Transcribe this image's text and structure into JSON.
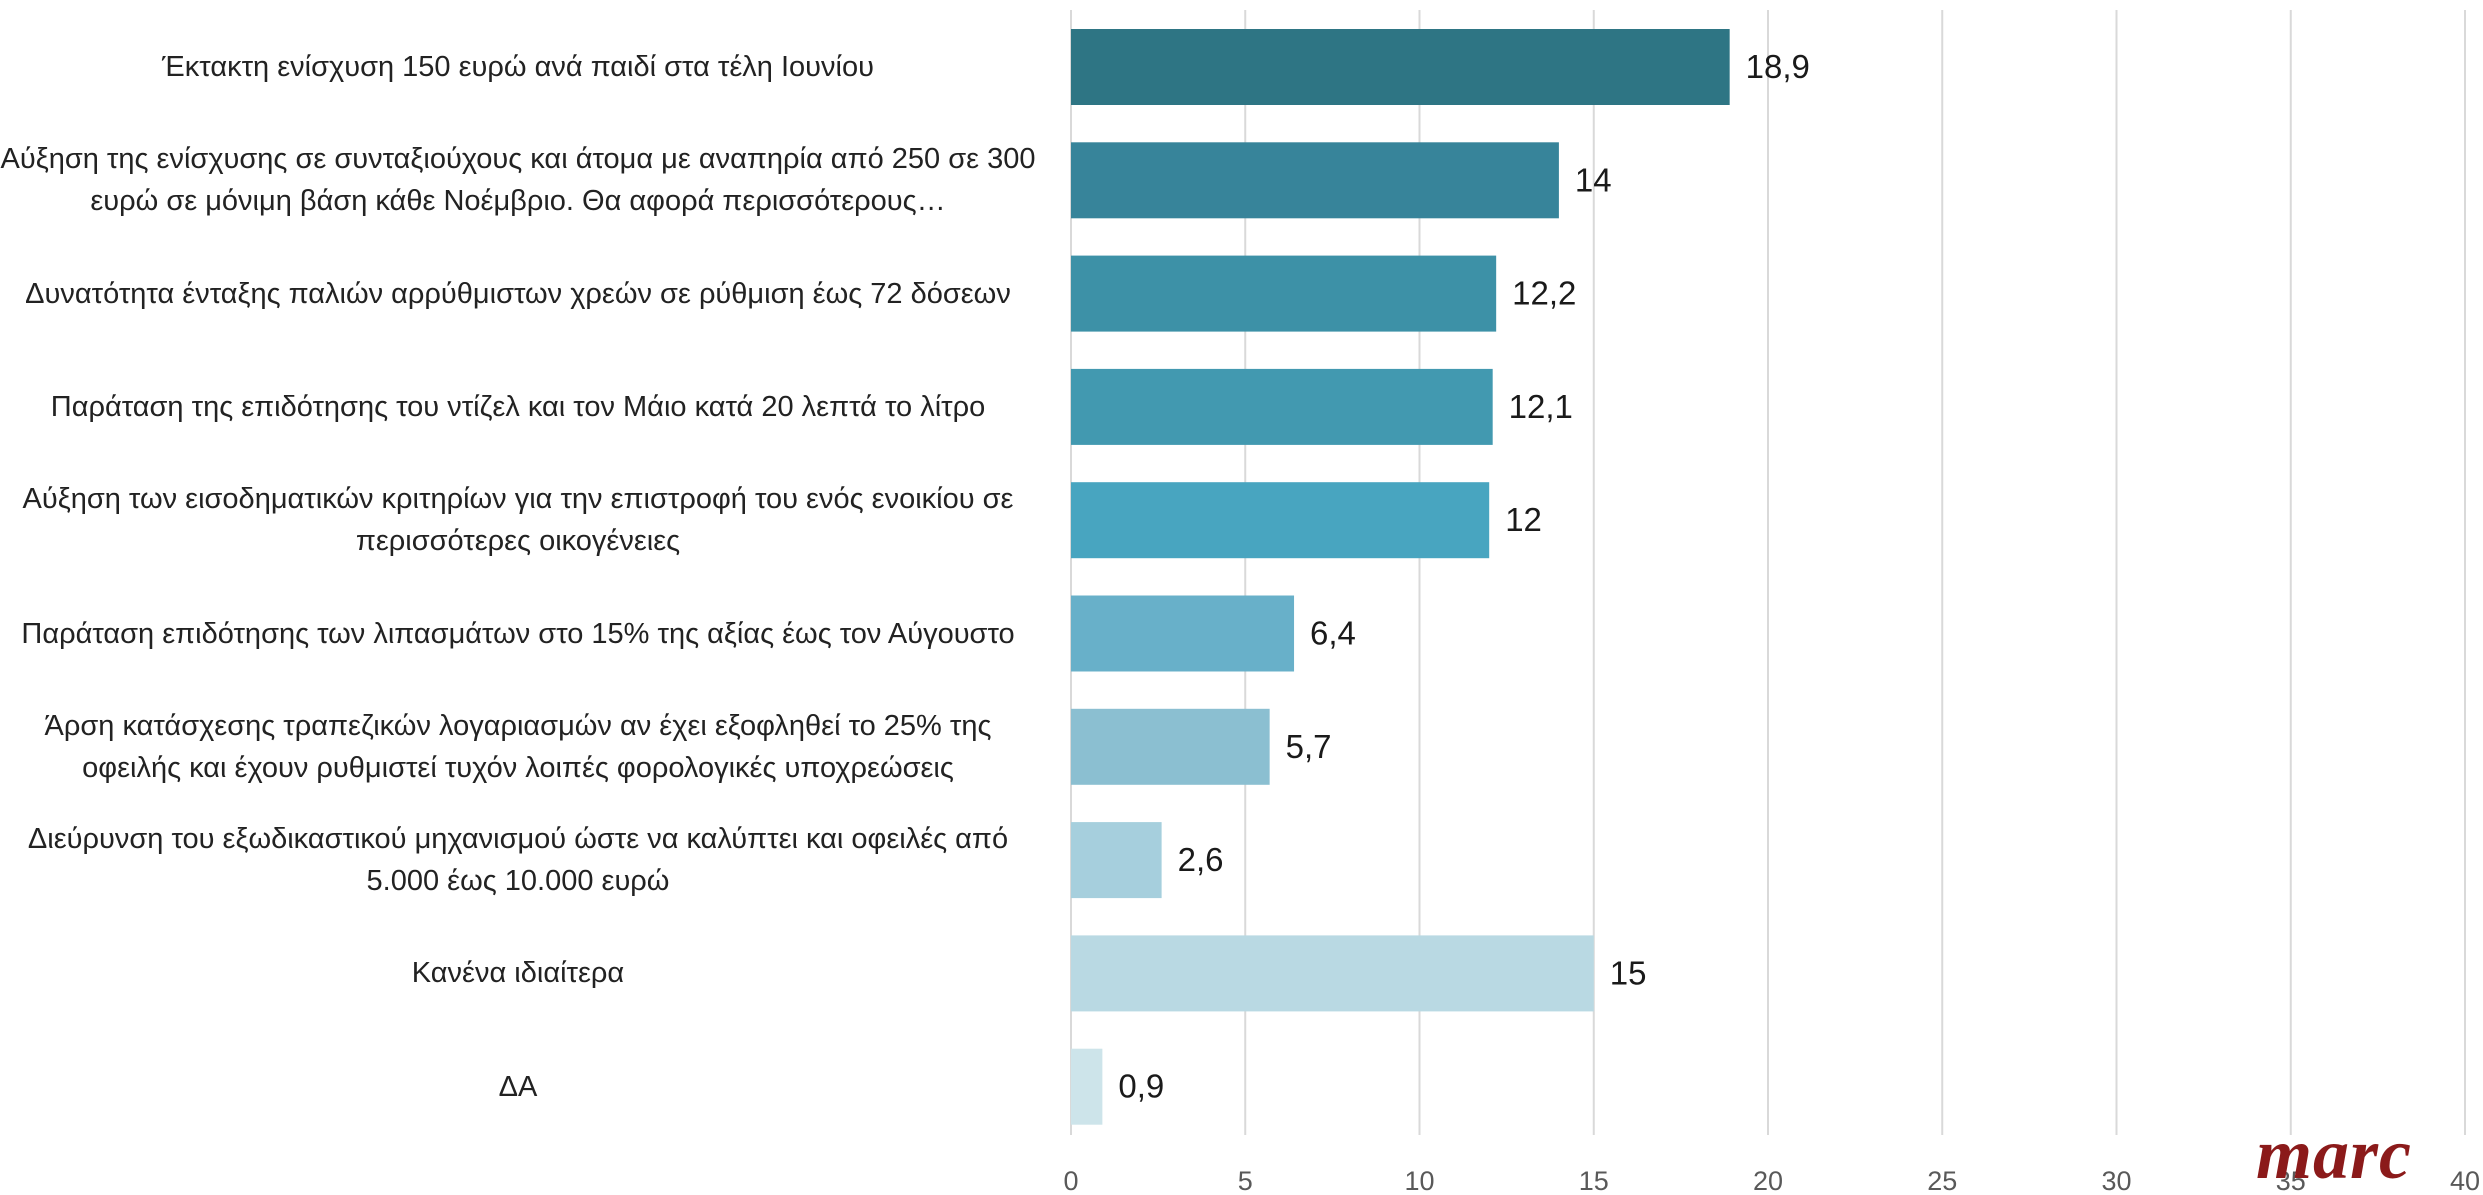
{
  "chart_data": {
    "type": "bar",
    "orientation": "horizontal",
    "categories": [
      "Έκτακτη ενίσχυση 150 ευρώ ανά παιδί στα τέλη Ιουνίου",
      "Αύξηση της ενίσχυσης σε συνταξιούχους και άτομα με αναπηρία από 250 σε 300 ευρώ σε μόνιμη βάση κάθε Νοέμβριο. Θα αφορά περισσότερους…",
      "Δυνατότητα ένταξης παλιών αρρύθμιστων χρεών  σε ρύθμιση έως 72 δόσεων",
      "Παράταση της επιδότησης του ντίζελ και τον Μάιο κατά 20 λεπτά το λίτρο",
      "Αύξηση των εισοδηματικών κριτηρίων για την επιστροφή του ενός ενοικίου σε περισσότερες οικογένειες",
      "Παράταση επιδότησης των λιπασμάτων στο 15% της αξίας έως τον Αύγουστο",
      "Άρση κατάσχεσης τραπεζικών λογαριασμών αν έχει εξοφληθεί το 25% της οφειλής και έχουν ρυθμιστεί τυχόν λοιπές φορολογικές υποχρεώσεις",
      "Διεύρυνση του εξωδικαστικού μηχανισμού ώστε να καλύπτει και οφειλές από 5.000 έως 10.000 ευρώ",
      "Κανένα ιδιαίτερα",
      "ΔΑ"
    ],
    "values": [
      18.9,
      14,
      12.2,
      12.1,
      12,
      6.4,
      5.7,
      2.6,
      15,
      0.9
    ],
    "value_labels": [
      "18,9",
      "14",
      "12,2",
      "12,1",
      "12",
      "6,4",
      "5,7",
      "2,6",
      "15",
      "0,9"
    ],
    "xlim": [
      0,
      40
    ],
    "xticks": [
      "0",
      "5",
      "10",
      "15",
      "20",
      "25",
      "30",
      "35",
      "40"
    ],
    "grid": true,
    "title": "",
    "xlabel": "",
    "ylabel": "",
    "colors": [
      "#2e7584",
      "#37849a",
      "#3d91a7",
      "#4299b0",
      "#48a5c0",
      "#68b0c9",
      "#8bbfd1",
      "#a6cfdd",
      "#b9d9e3",
      "#cde4ea"
    ]
  },
  "logo_text": "marc"
}
